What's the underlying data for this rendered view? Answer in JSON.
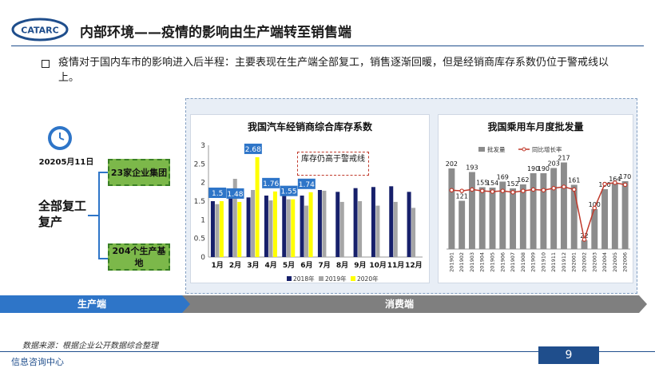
{
  "header": {
    "logo_text": "CATARC",
    "title": "内部环境——疫情的影响由生产端转至销售端"
  },
  "bullet": {
    "text": "疫情对于国内车市的影响进入后半程：主要表现在生产端全部复工，销售逐渐回暖，但是经销商库存系数仍位于警戒线以上。"
  },
  "left": {
    "date": "20205月11日",
    "main_label": "全部复工复产",
    "box1": "23家企业集团",
    "box2": "204个生产基地"
  },
  "bars": {
    "production_label": "生产端",
    "consumption_label": "消费端"
  },
  "footer": {
    "source": "数据来源：根据企业公开数据综合整理",
    "page": "9",
    "org": "信息咨询中心"
  },
  "colors": {
    "navy": "#17206b",
    "gray": "#a6a6a6",
    "yellow": "#ffff00",
    "blue": "#1f4e8c",
    "label_bg": "#2e75c8",
    "red": "#c0392b"
  },
  "chart_data": [
    {
      "type": "bar",
      "title": "我国汽车经销商综合库存系数",
      "categories": [
        "1月",
        "2月",
        "3月",
        "4月",
        "5月",
        "6月",
        "7月",
        "8月",
        "9月",
        "10月",
        "11月",
        "12月"
      ],
      "series": [
        {
          "name": "2018年",
          "values": [
            1.5,
            1.6,
            1.6,
            1.65,
            1.8,
            1.65,
            1.8,
            1.75,
            1.85,
            1.88,
            1.9,
            1.75
          ]
        },
        {
          "name": "2019年",
          "values": [
            1.42,
            2.1,
            1.8,
            1.52,
            1.55,
            1.38,
            1.78,
            1.48,
            1.5,
            1.38,
            1.48,
            1.32
          ]
        },
        {
          "name": "2020年",
          "values": [
            1.5,
            1.48,
            2.68,
            1.76,
            1.55,
            1.74,
            null,
            null,
            null,
            null,
            null,
            null
          ]
        }
      ],
      "data_labels": [
        "1.5",
        "1.48",
        "2.68",
        "1.76",
        "1.55",
        "1.74"
      ],
      "annotation": "库存仍高于警戒线",
      "ylim": [
        0,
        3
      ],
      "yticks": [
        "0",
        "0.5",
        "1",
        "1.5",
        "2",
        "2.5",
        "3"
      ]
    },
    {
      "type": "bar",
      "title": "我国乘用车月度批发量",
      "categories": [
        "201901",
        "201902",
        "201903",
        "201904",
        "201905",
        "201906",
        "201907",
        "201908",
        "201909",
        "201910",
        "201911",
        "201912",
        "202001",
        "202002",
        "202003",
        "202004",
        "202005",
        "202006"
      ],
      "series": [
        {
          "name": "批发量",
          "values": [
            202,
            121,
            193,
            155,
            154,
            169,
            152,
            162,
            190,
            190,
            203,
            217,
            161,
            22,
            100,
            150,
            164,
            170
          ]
        },
        {
          "name": "同比增长率",
          "values": [
            -0.04,
            -0.05,
            -0.03,
            -0.05,
            -0.06,
            -0.05,
            -0.07,
            -0.05,
            -0.03,
            -0.04,
            -0.01,
            0.01,
            -0.03,
            -0.76,
            -0.3,
            0.05,
            0.07,
            0.04
          ]
        }
      ],
      "data_labels": [
        "202",
        "121",
        "193",
        "155",
        "154",
        "169",
        "152",
        "162",
        "190",
        "190",
        "203",
        "217",
        "161",
        "22",
        "100",
        "150",
        "164",
        "170"
      ]
    }
  ]
}
